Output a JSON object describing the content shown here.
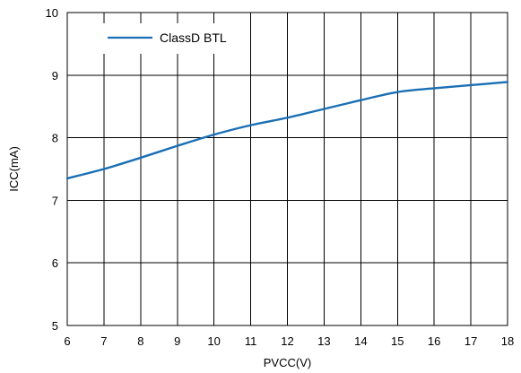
{
  "chart_data": {
    "type": "line",
    "title": "",
    "xlabel": "PVCC(V)",
    "ylabel": "ICC(mA)",
    "xlim": [
      6,
      18
    ],
    "ylim": [
      5,
      10
    ],
    "x_ticks": [
      6,
      7,
      8,
      9,
      10,
      11,
      12,
      13,
      14,
      15,
      16,
      17,
      18
    ],
    "y_ticks": [
      5,
      6,
      7,
      8,
      9,
      10
    ],
    "grid": true,
    "legend_position": "top-left",
    "series": [
      {
        "name": "ClassD BTL",
        "color": "#1a6fb5",
        "x": [
          6,
          7,
          8,
          9,
          10,
          11,
          12,
          13,
          14,
          15,
          16,
          17,
          18
        ],
        "y": [
          7.35,
          7.5,
          7.68,
          7.87,
          8.05,
          8.2,
          8.32,
          8.46,
          8.6,
          8.73,
          8.79,
          8.84,
          8.89
        ]
      }
    ]
  }
}
